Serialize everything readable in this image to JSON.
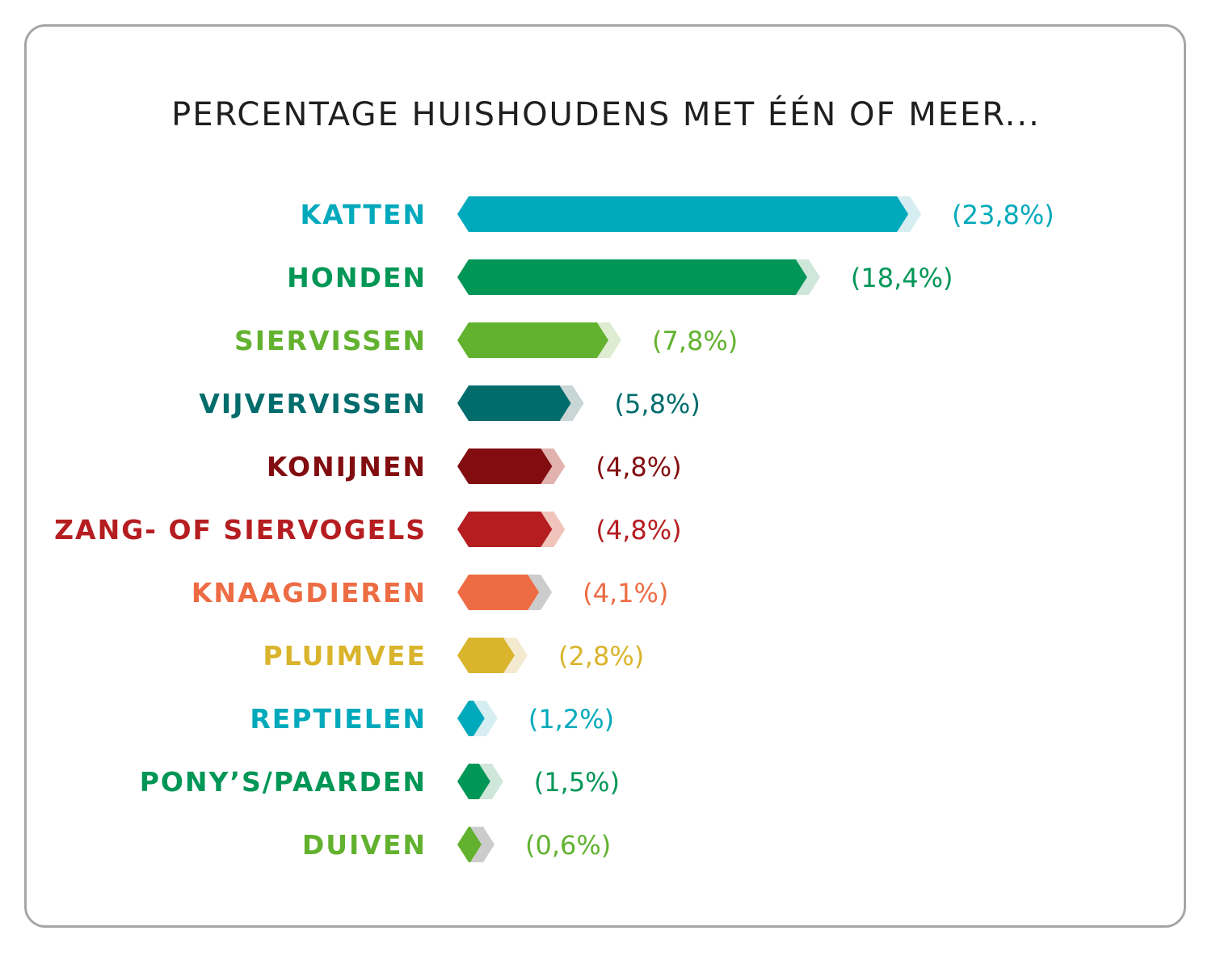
{
  "chart_data": {
    "type": "bar",
    "orientation": "horizontal",
    "title": "PERCENTAGE HUISHOUDENS MET ÉÉN OF MEER...",
    "xlabel": "",
    "ylabel": "",
    "unit": "%",
    "grid": false,
    "legend": "none",
    "categories": [
      "KATTEN",
      "HONDEN",
      "SIERVISSEN",
      "VIJVERVISSEN",
      "KONIJNEN",
      "ZANG- OF SIERVOGELS",
      "KNAAGDIEREN",
      "PLUIMVEE",
      "REPTIELEN",
      "PONY’S/PAARDEN",
      "DUIVEN"
    ],
    "values": [
      23.8,
      18.4,
      7.8,
      5.8,
      4.8,
      4.8,
      4.1,
      2.8,
      1.2,
      1.5,
      0.6
    ],
    "value_labels": [
      "(23,8%)",
      "(18,4%)",
      "(7,8%)",
      "(5,8%)",
      "(4,8%)",
      "(4,8%)",
      "(4,1%)",
      "(2,8%)",
      "(1,2%)",
      "(1,5%)",
      "(0,6%)"
    ],
    "colors": [
      "#00a9bb",
      "#009656",
      "#62b22f",
      "#006c6c",
      "#820d10",
      "#b51d20",
      "#ed6c43",
      "#d9b42c",
      "#00a9bb",
      "#009656",
      "#62b22f"
    ],
    "tip_colors": [
      "#d6eef1",
      "#cfe6da",
      "#deedd1",
      "#c8d6d6",
      "#e2b3ae",
      "#f0c4ba",
      "#cccccc",
      "#f4ead0",
      "#d6eef1",
      "#cfe6da",
      "#cccccc"
    ]
  }
}
